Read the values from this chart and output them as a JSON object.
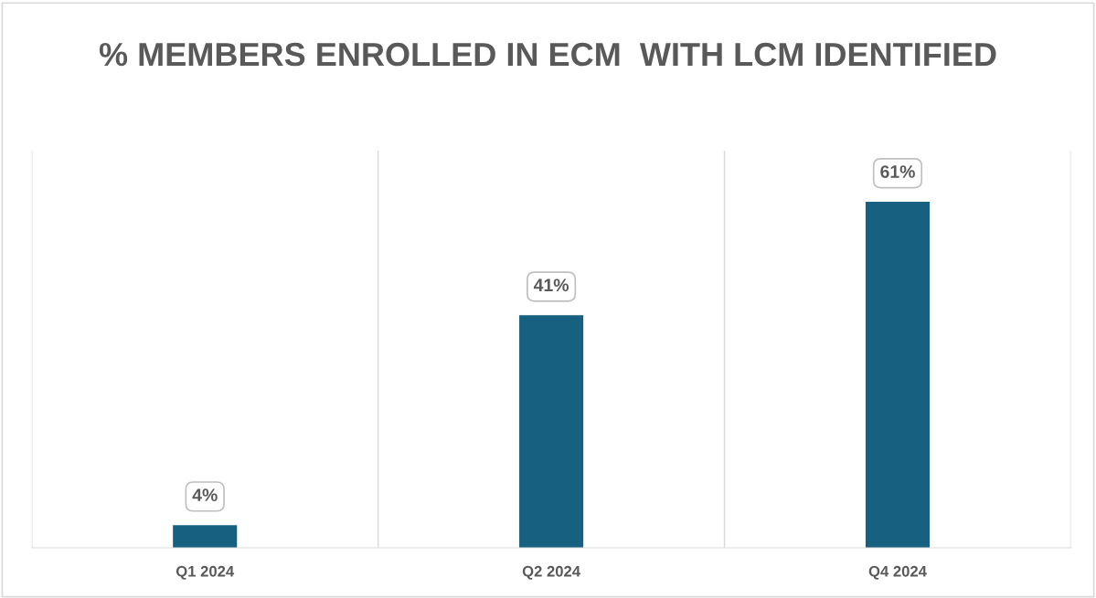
{
  "chart_data": {
    "type": "bar",
    "title": "% MEMBERS ENROLLED IN ECM  WITH LCM IDENTIFIED",
    "categories": [
      "Q1 2024",
      "Q2 2024",
      "Q4 2024"
    ],
    "values": [
      4,
      41,
      61
    ],
    "value_labels": [
      "4%",
      "41%",
      "61%"
    ],
    "color": "#17607f",
    "ylim": [
      0,
      70
    ],
    "grid": "x"
  }
}
